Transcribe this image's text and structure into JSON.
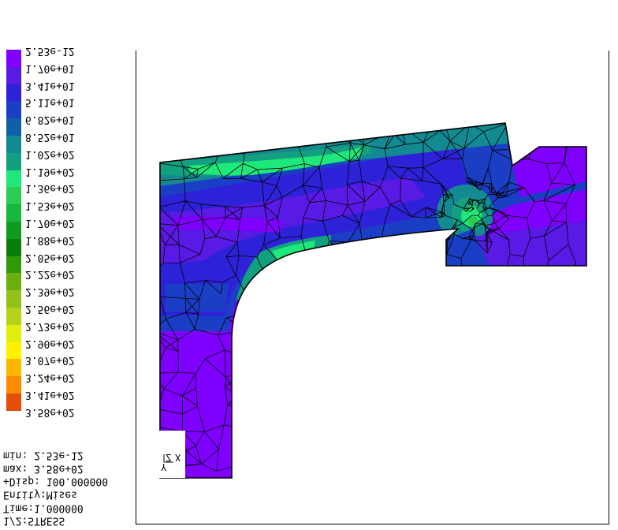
{
  "legend": {
    "colors": [
      "#7f00ff",
      "#5a1ae6",
      "#2e22d9",
      "#1a3fc4",
      "#1060a8",
      "#138a92",
      "#13a080",
      "#1fe87a",
      "#2acd52",
      "#15b83a",
      "#0f9a20",
      "#0a7e0b",
      "#2e9a0a",
      "#6cb010",
      "#92c21a",
      "#b6d21c",
      "#e1ed0c",
      "#fff200",
      "#ffb600",
      "#ff8a00",
      "#e54e08",
      "#c21010"
    ],
    "labels": [
      "2.53e-12",
      "1.70e+01",
      "3.41e+01",
      "5.11e+01",
      "6.82e+01",
      "8.52e+01",
      "1.02e+02",
      "1.19e+02",
      "1.36e+02",
      "1.53e+02",
      "1.70e+02",
      "1.88e+02",
      "2.05e+02",
      "2.22e+02",
      "2.39e+02",
      "2.56e+02",
      "2.73e+02",
      "2.90e+02",
      "3.07e+02",
      "3.24e+02",
      "3.41e+02",
      "3.58e+02"
    ]
  },
  "info": {
    "min": "min: 2.53e-12",
    "max": "max: 3.58e+02",
    "disp": "+Disp: 100.000000",
    "entity": "Entity:Mises",
    "time": "Time:1.000000",
    "result": "1/2:STRESS"
  },
  "triad": {
    "x_label": "X",
    "y_label": "Y",
    "z_label": "Z"
  },
  "colors": {
    "low": "#7f00ff",
    "mid": "#1fe87a",
    "high": "#c21010"
  }
}
